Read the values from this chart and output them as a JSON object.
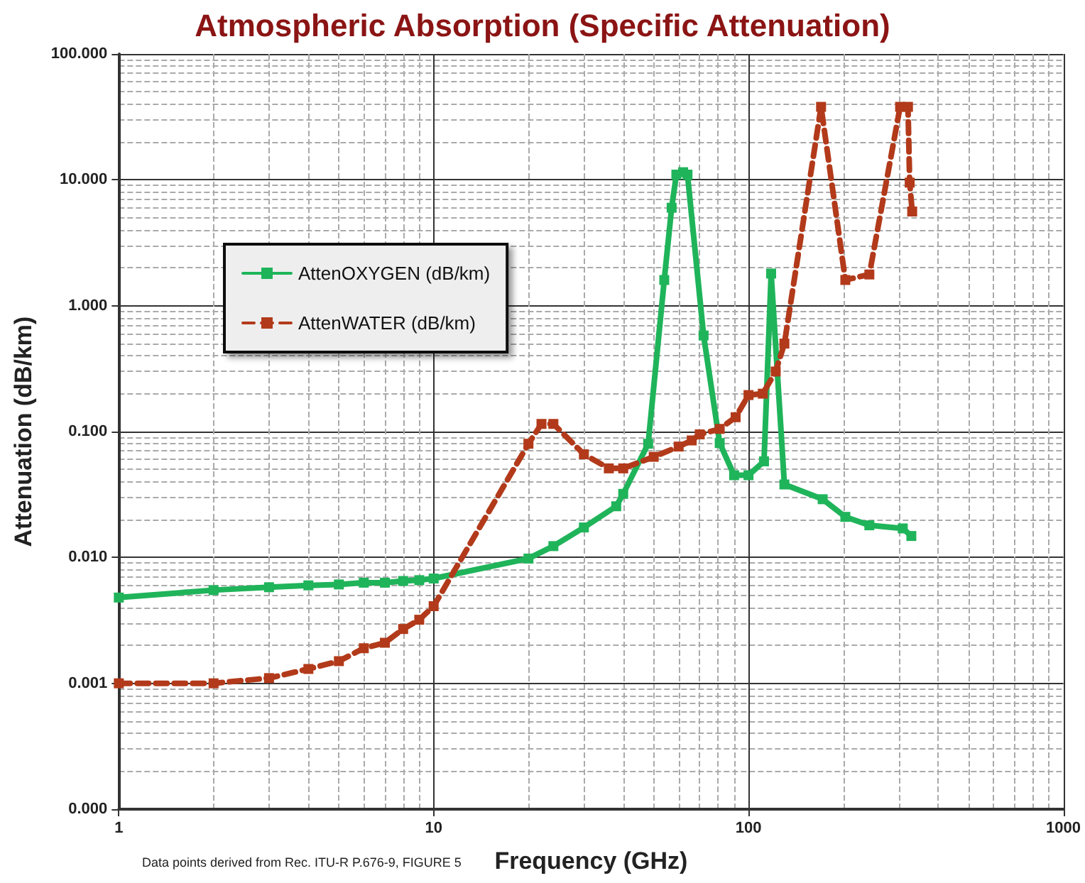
{
  "chart_data": {
    "type": "line",
    "title": "Atmospheric Absorption (Specific Attenuation)",
    "xlabel": "Frequency (GHz)",
    "ylabel": "Attenuation (dB/km)",
    "annotations": [
      "Data points derived from Rec. ITU-R P.676-9, FIGURE 5"
    ],
    "log": "xy",
    "grid": true,
    "legend": "top left",
    "marker": "square",
    "xlim": [
      1,
      1000
    ],
    "xticks": [
      1,
      10,
      100,
      1000
    ],
    "ylim": [
      0.0001,
      100
    ],
    "yticks": [
      {
        "value": 0.0001,
        "label": "0.000"
      },
      {
        "value": 0.001,
        "label": "0.001"
      },
      {
        "value": 0.01,
        "label": "0.010"
      },
      {
        "value": 0.1,
        "label": "0.100"
      },
      {
        "value": 1,
        "label": "1.000"
      },
      {
        "value": 10,
        "label": "10.000"
      },
      {
        "value": 100,
        "label": "100.000"
      }
    ],
    "series": [
      {
        "name": "AttenOXYGEN (dB/km)",
        "color": "#1fb45a",
        "line_style": "solid",
        "x": [
          1,
          2,
          3,
          4,
          5,
          6,
          7,
          8,
          9,
          10,
          20,
          24,
          30,
          38,
          40,
          48,
          54,
          57,
          59,
          62,
          64,
          72,
          81,
          90,
          100,
          112,
          118,
          130,
          172,
          203,
          242,
          309,
          329
        ],
        "values": [
          0.0048,
          0.0055,
          0.0058,
          0.006,
          0.0061,
          0.0063,
          0.0063,
          0.0065,
          0.0066,
          0.0068,
          0.0098,
          0.0123,
          0.0173,
          0.0255,
          0.032,
          0.08,
          1.6,
          6,
          11,
          11.5,
          11,
          0.58,
          0.081,
          0.045,
          0.045,
          0.058,
          1.8,
          0.038,
          0.029,
          0.021,
          0.018,
          0.017,
          0.0148
        ]
      },
      {
        "name": "AttenWATER (dB/km)",
        "color": "#b23a1a",
        "line_style": "dashed",
        "x": [
          1,
          2,
          3,
          4,
          5,
          6,
          7,
          8,
          9,
          10,
          20,
          22,
          24,
          30,
          36,
          40,
          50,
          60,
          66,
          70,
          81,
          91,
          100,
          111,
          122,
          130,
          170,
          203,
          242,
          303,
          321,
          325,
          331
        ],
        "values": [
          0.001,
          0.001,
          0.0011,
          0.0013,
          0.0015,
          0.0019,
          0.0021,
          0.0027,
          0.0032,
          0.0041,
          0.08,
          0.115,
          0.115,
          0.066,
          0.051,
          0.051,
          0.063,
          0.076,
          0.085,
          0.095,
          0.105,
          0.13,
          0.195,
          0.2,
          0.3,
          0.5,
          38,
          1.6,
          1.77,
          38,
          38,
          9.5,
          5.6
        ]
      }
    ]
  }
}
